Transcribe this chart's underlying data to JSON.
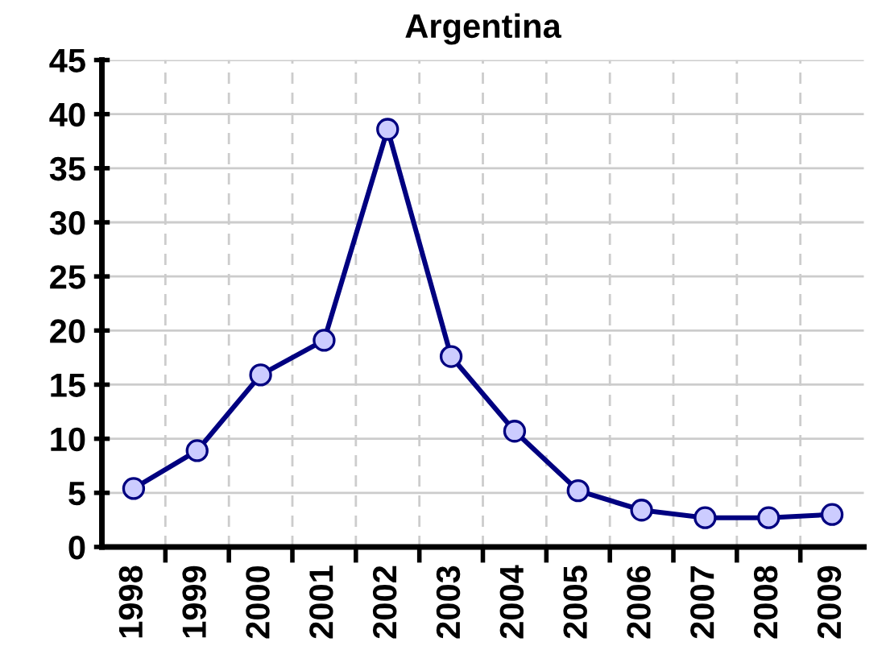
{
  "chart_data": {
    "type": "line",
    "title": "Argentina",
    "categories": [
      "1998",
      "1999",
      "2000",
      "2001",
      "2002",
      "2003",
      "2004",
      "2005",
      "2006",
      "2007",
      "2008",
      "2009"
    ],
    "series": [
      {
        "color": "#000080",
        "values": [
          5.4,
          8.9,
          15.9,
          19.1,
          38.6,
          17.6,
          10.7,
          5.2,
          3.4,
          2.7,
          2.7,
          3.0
        ]
      }
    ],
    "ylim": [
      0,
      45
    ],
    "yticks": [
      0,
      5,
      10,
      15,
      20,
      25,
      30,
      35,
      40,
      45
    ],
    "grid": true,
    "marker": "circle",
    "line_style": "solid"
  }
}
